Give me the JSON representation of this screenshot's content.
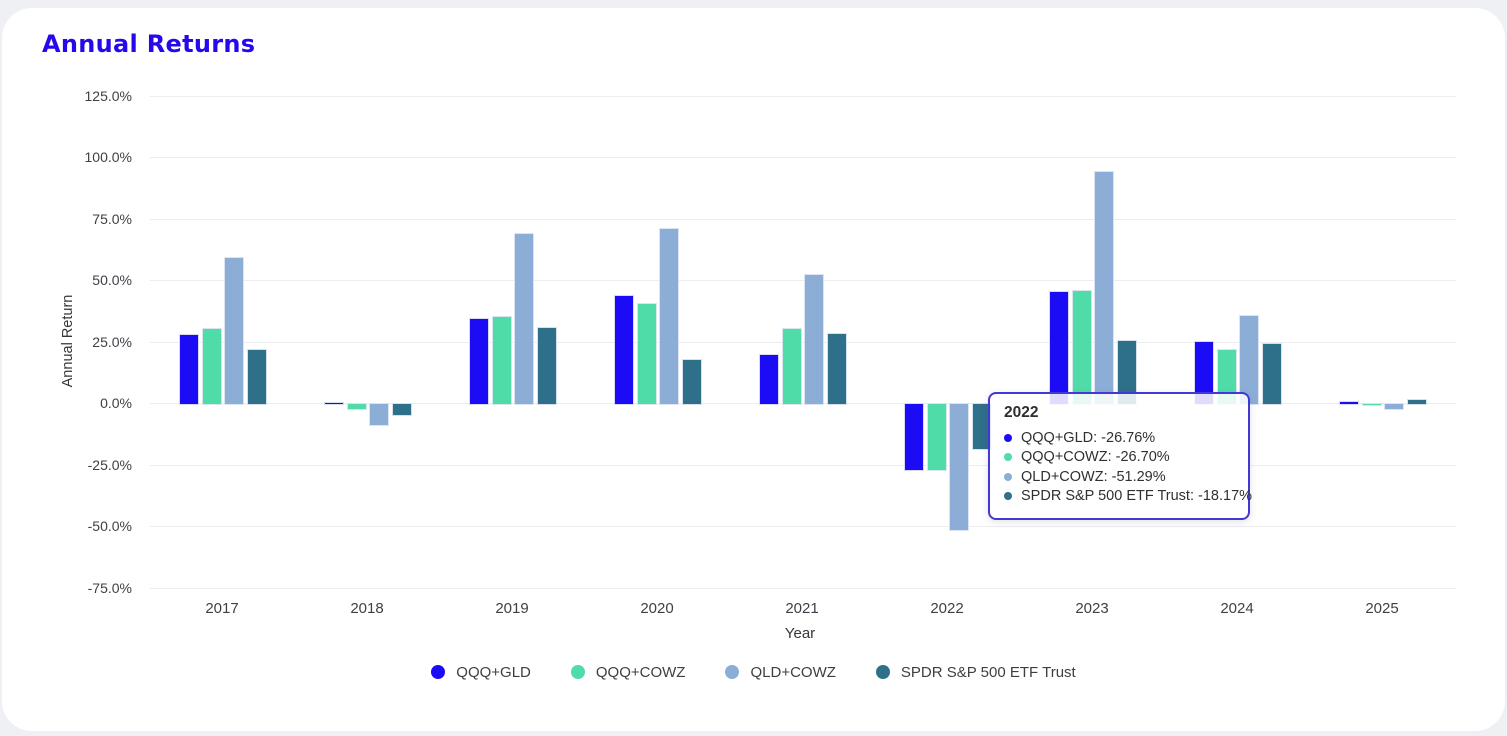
{
  "header": {
    "title": "Annual Returns",
    "title_color": "#2508ec"
  },
  "chart_data": {
    "type": "bar",
    "title": "Annual Returns",
    "xlabel": "Year",
    "ylabel": "Annual Return",
    "categories": [
      "2017",
      "2018",
      "2019",
      "2020",
      "2021",
      "2022",
      "2023",
      "2024",
      "2025"
    ],
    "series": [
      {
        "name": "QQQ+GLD",
        "color": "#1c0cf6",
        "values": [
          28.2,
          0.5,
          34.5,
          43.8,
          20.0,
          -26.76,
          45.5,
          25.3,
          0.8
        ]
      },
      {
        "name": "QQQ+COWZ",
        "color": "#50dca9",
        "values": [
          30.3,
          -2.0,
          35.3,
          40.5,
          30.3,
          -26.7,
          45.8,
          22.0,
          0.1
        ]
      },
      {
        "name": "QLD+COWZ",
        "color": "#8caed6",
        "values": [
          59.3,
          -8.5,
          69.0,
          71.3,
          52.3,
          -51.29,
          94.3,
          35.8,
          -2.2
        ]
      },
      {
        "name": "SPDR S&P 500 ETF Trust",
        "color": "#2e7089",
        "values": [
          21.8,
          -4.4,
          31.0,
          17.8,
          28.5,
          -18.17,
          25.8,
          24.2,
          1.5
        ]
      }
    ],
    "y_ticks": [
      "125.0%",
      "100.0%",
      "75.0%",
      "50.0%",
      "25.0%",
      "0.0%",
      "-25.0%",
      "-50.0%",
      "-75.0%"
    ],
    "ylim": [
      -75,
      125
    ],
    "ytick_step": 25,
    "grid": true,
    "legend_position": "bottom"
  },
  "tooltip": {
    "title": "2022",
    "border_color": "#4338d6",
    "rows": [
      {
        "label": "QQQ+GLD",
        "value": "-26.76%",
        "color": "#1c0cf6"
      },
      {
        "label": "QQQ+COWZ",
        "value": "-26.70%",
        "color": "#50dca9"
      },
      {
        "label": "QLD+COWZ",
        "value": "-51.29%",
        "color": "#8caed6"
      },
      {
        "label": "SPDR S&P 500 ETF Trust",
        "value": "-18.17%",
        "color": "#2e7089"
      }
    ]
  }
}
